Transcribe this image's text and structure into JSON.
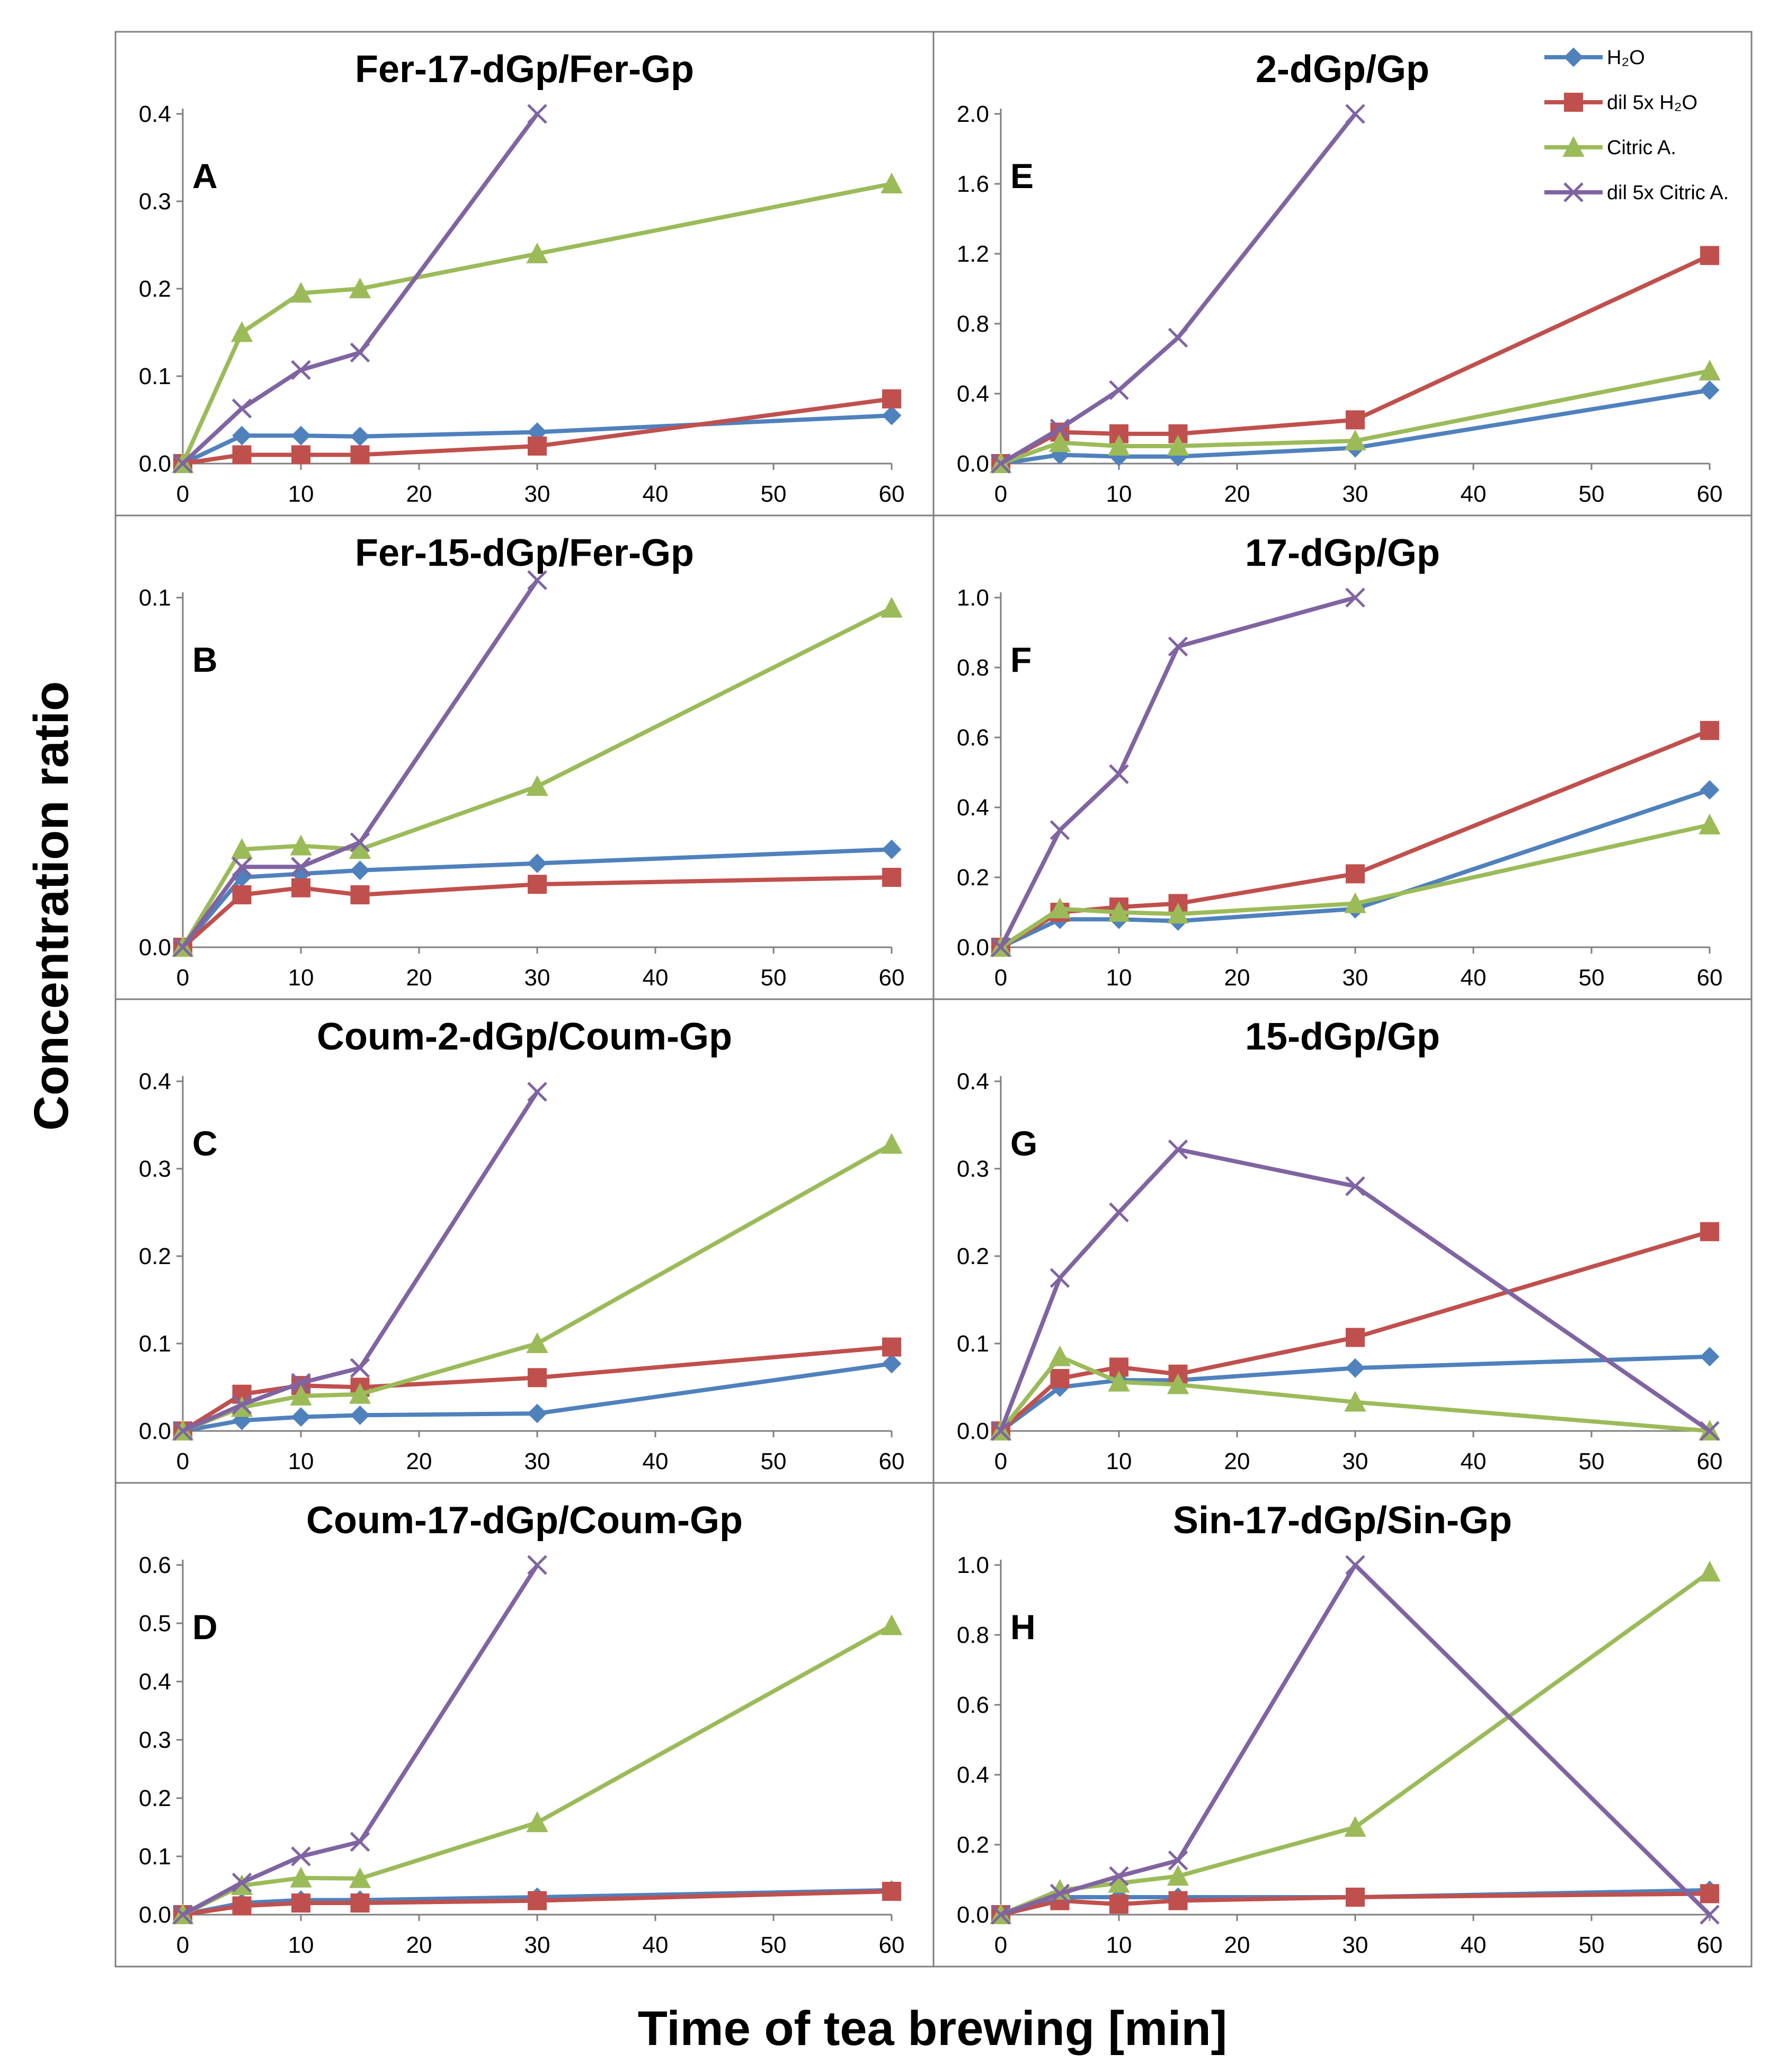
{
  "figure": {
    "xlabel": "Time of tea brewing [min]",
    "ylabel": "Concentration ratio"
  },
  "legend": [
    {
      "label": "H₂O",
      "color": "#4F81BD",
      "marker": "diamond"
    },
    {
      "label": "dil 5x H₂O",
      "color": "#C0504D",
      "marker": "square"
    },
    {
      "label": "Citric A.",
      "color": "#9BBB59",
      "marker": "triangle"
    },
    {
      "label": "dil 5x Citric A.",
      "color": "#8064A2",
      "marker": "x"
    }
  ],
  "chart_data": [
    {
      "type": "line",
      "letter": "A",
      "title": "Fer-17-dGp/Fer-Gp",
      "ylim": [
        0,
        0.4
      ],
      "yticks": [
        "0.0",
        "0.1",
        "0.2",
        "0.3",
        "0.4"
      ],
      "xlim": [
        0,
        60
      ],
      "xticks": [
        "0",
        "10",
        "20",
        "30",
        "40",
        "50",
        "60"
      ],
      "x": [
        0,
        5,
        10,
        15,
        30,
        60
      ],
      "series": [
        {
          "name": "H₂O",
          "values": [
            0,
            0.032,
            0.032,
            0.031,
            0.036,
            0.055
          ]
        },
        {
          "name": "dil 5x H₂O",
          "values": [
            0,
            0.01,
            0.01,
            0.01,
            0.02,
            0.074
          ]
        },
        {
          "name": "Citric A.",
          "values": [
            0,
            0.15,
            0.195,
            0.2,
            0.24,
            0.32
          ]
        },
        {
          "name": "dil 5x Citric A.",
          "values": [
            0,
            0.063,
            0.107,
            0.127,
            0.4,
            null
          ]
        }
      ]
    },
    {
      "type": "line",
      "letter": "E",
      "title": "2-dGp/Gp",
      "ylim": [
        0,
        2.0
      ],
      "yticks": [
        "0.0",
        "0.4",
        "0.8",
        "1.2",
        "1.6",
        "2.0"
      ],
      "xlim": [
        0,
        60
      ],
      "xticks": [
        "0",
        "10",
        "20",
        "30",
        "40",
        "50",
        "60"
      ],
      "x": [
        0,
        5,
        10,
        15,
        30,
        60
      ],
      "series": [
        {
          "name": "H₂O",
          "values": [
            0,
            0.05,
            0.04,
            0.04,
            0.09,
            0.42
          ]
        },
        {
          "name": "dil 5x H₂O",
          "values": [
            0,
            0.18,
            0.17,
            0.17,
            0.25,
            1.19
          ]
        },
        {
          "name": "Citric A.",
          "values": [
            0,
            0.12,
            0.1,
            0.1,
            0.13,
            0.53
          ]
        },
        {
          "name": "dil 5x Citric A.",
          "values": [
            0,
            0.2,
            0.42,
            0.72,
            2.0,
            null
          ]
        }
      ]
    },
    {
      "type": "line",
      "letter": "B",
      "title": "Fer-15-dGp/Fer-Gp",
      "ylim": [
        0,
        0.1
      ],
      "yticks": [
        "0.0",
        "0.1"
      ],
      "xlim": [
        0,
        60
      ],
      "xticks": [
        "0",
        "10",
        "20",
        "30",
        "40",
        "50",
        "60"
      ],
      "x": [
        0,
        5,
        10,
        15,
        30,
        60
      ],
      "series": [
        {
          "name": "H₂O",
          "values": [
            0,
            0.02,
            0.021,
            0.022,
            0.024,
            0.028
          ]
        },
        {
          "name": "dil 5x H₂O",
          "values": [
            0,
            0.015,
            0.017,
            0.015,
            0.018,
            0.02
          ]
        },
        {
          "name": "Citric A.",
          "values": [
            0,
            0.028,
            0.029,
            0.028,
            0.046,
            0.097
          ]
        },
        {
          "name": "dil 5x Citric A.",
          "values": [
            0,
            0.023,
            0.023,
            0.03,
            0.105,
            null
          ]
        }
      ]
    },
    {
      "type": "line",
      "letter": "F",
      "title": "17-dGp/Gp",
      "ylim": [
        0,
        1.0
      ],
      "yticks": [
        "0.0",
        "0.2",
        "0.4",
        "0.6",
        "0.8",
        "1.0"
      ],
      "xlim": [
        0,
        60
      ],
      "xticks": [
        "0",
        "10",
        "20",
        "30",
        "40",
        "50",
        "60"
      ],
      "x": [
        0,
        5,
        10,
        15,
        30,
        60
      ],
      "series": [
        {
          "name": "H₂O",
          "values": [
            0,
            0.08,
            0.08,
            0.075,
            0.11,
            0.45
          ]
        },
        {
          "name": "dil 5x H₂O",
          "values": [
            0,
            0.1,
            0.115,
            0.125,
            0.21,
            0.62
          ]
        },
        {
          "name": "Citric A.",
          "values": [
            0,
            0.11,
            0.1,
            0.095,
            0.125,
            0.35
          ]
        },
        {
          "name": "dil 5x Citric A.",
          "values": [
            0,
            0.335,
            0.495,
            0.86,
            1.0,
            null
          ]
        }
      ]
    },
    {
      "type": "line",
      "letter": "C",
      "title": "Coum-2-dGp/Coum-Gp",
      "ylim": [
        0,
        0.4
      ],
      "yticks": [
        "0.0",
        "0.1",
        "0.2",
        "0.3",
        "0.4"
      ],
      "xlim": [
        0,
        60
      ],
      "xticks": [
        "0",
        "10",
        "20",
        "30",
        "40",
        "50",
        "60"
      ],
      "x": [
        0,
        5,
        10,
        15,
        30,
        60
      ],
      "series": [
        {
          "name": "H₂O",
          "values": [
            0,
            0.012,
            0.016,
            0.018,
            0.02,
            0.077
          ]
        },
        {
          "name": "dil 5x H₂O",
          "values": [
            0,
            0.042,
            0.052,
            0.05,
            0.061,
            0.096
          ]
        },
        {
          "name": "Citric A.",
          "values": [
            0,
            0.027,
            0.04,
            0.042,
            0.1,
            0.328
          ]
        },
        {
          "name": "dil 5x Citric A.",
          "values": [
            0,
            0.03,
            0.055,
            0.072,
            0.388,
            null
          ]
        }
      ]
    },
    {
      "type": "line",
      "letter": "G",
      "title": "15-dGp/Gp",
      "ylim": [
        0,
        0.4
      ],
      "yticks": [
        "0.0",
        "0.1",
        "0.2",
        "0.3",
        "0.4"
      ],
      "xlim": [
        0,
        60
      ],
      "xticks": [
        "0",
        "10",
        "20",
        "30",
        "40",
        "50",
        "60"
      ],
      "x": [
        0,
        5,
        10,
        15,
        30,
        60
      ],
      "series": [
        {
          "name": "H₂O",
          "values": [
            0,
            0.05,
            0.058,
            0.058,
            0.072,
            0.085
          ]
        },
        {
          "name": "dil 5x H₂O",
          "values": [
            0,
            0.06,
            0.073,
            0.065,
            0.107,
            0.228
          ]
        },
        {
          "name": "Citric A.",
          "values": [
            0,
            0.085,
            0.056,
            0.053,
            0.033,
            0
          ]
        },
        {
          "name": "dil 5x Citric A.",
          "values": [
            0,
            0.175,
            0.25,
            0.322,
            0.28,
            0
          ]
        }
      ]
    },
    {
      "type": "line",
      "letter": "D",
      "title": "Coum-17-dGp/Coum-Gp",
      "ylim": [
        0,
        0.6
      ],
      "yticks": [
        "0.0",
        "0.1",
        "0.2",
        "0.3",
        "0.4",
        "0.5",
        "0.6"
      ],
      "xlim": [
        0,
        60
      ],
      "xticks": [
        "0",
        "10",
        "20",
        "30",
        "40",
        "50",
        "60"
      ],
      "x": [
        0,
        5,
        10,
        15,
        30,
        60
      ],
      "series": [
        {
          "name": "H₂O",
          "values": [
            0,
            0.02,
            0.025,
            0.025,
            0.03,
            0.042
          ]
        },
        {
          "name": "dil 5x H₂O",
          "values": [
            0,
            0.015,
            0.02,
            0.02,
            0.024,
            0.04
          ]
        },
        {
          "name": "Citric A.",
          "values": [
            0,
            0.05,
            0.063,
            0.062,
            0.158,
            0.496
          ]
        },
        {
          "name": "dil 5x Citric A.",
          "values": [
            0,
            0.055,
            0.1,
            0.125,
            0.6,
            null
          ]
        }
      ]
    },
    {
      "type": "line",
      "letter": "H",
      "title": "Sin-17-dGp/Sin-Gp",
      "ylim": [
        0,
        1.0
      ],
      "yticks": [
        "0.0",
        "0.2",
        "0.4",
        "0.6",
        "0.8",
        "1.0"
      ],
      "xlim": [
        0,
        60
      ],
      "xticks": [
        "0",
        "10",
        "20",
        "30",
        "40",
        "50",
        "60"
      ],
      "x": [
        0,
        5,
        10,
        15,
        30,
        60
      ],
      "series": [
        {
          "name": "H₂O",
          "values": [
            0,
            0.05,
            0.05,
            0.05,
            0.05,
            0.07
          ]
        },
        {
          "name": "dil 5x H₂O",
          "values": [
            0,
            0.04,
            0.03,
            0.04,
            0.05,
            0.06
          ]
        },
        {
          "name": "Citric A.",
          "values": [
            0,
            0.07,
            0.09,
            0.11,
            0.25,
            0.98
          ]
        },
        {
          "name": "dil 5x Citric A.",
          "values": [
            0,
            0.06,
            0.11,
            0.155,
            1.0,
            0
          ]
        }
      ]
    }
  ]
}
